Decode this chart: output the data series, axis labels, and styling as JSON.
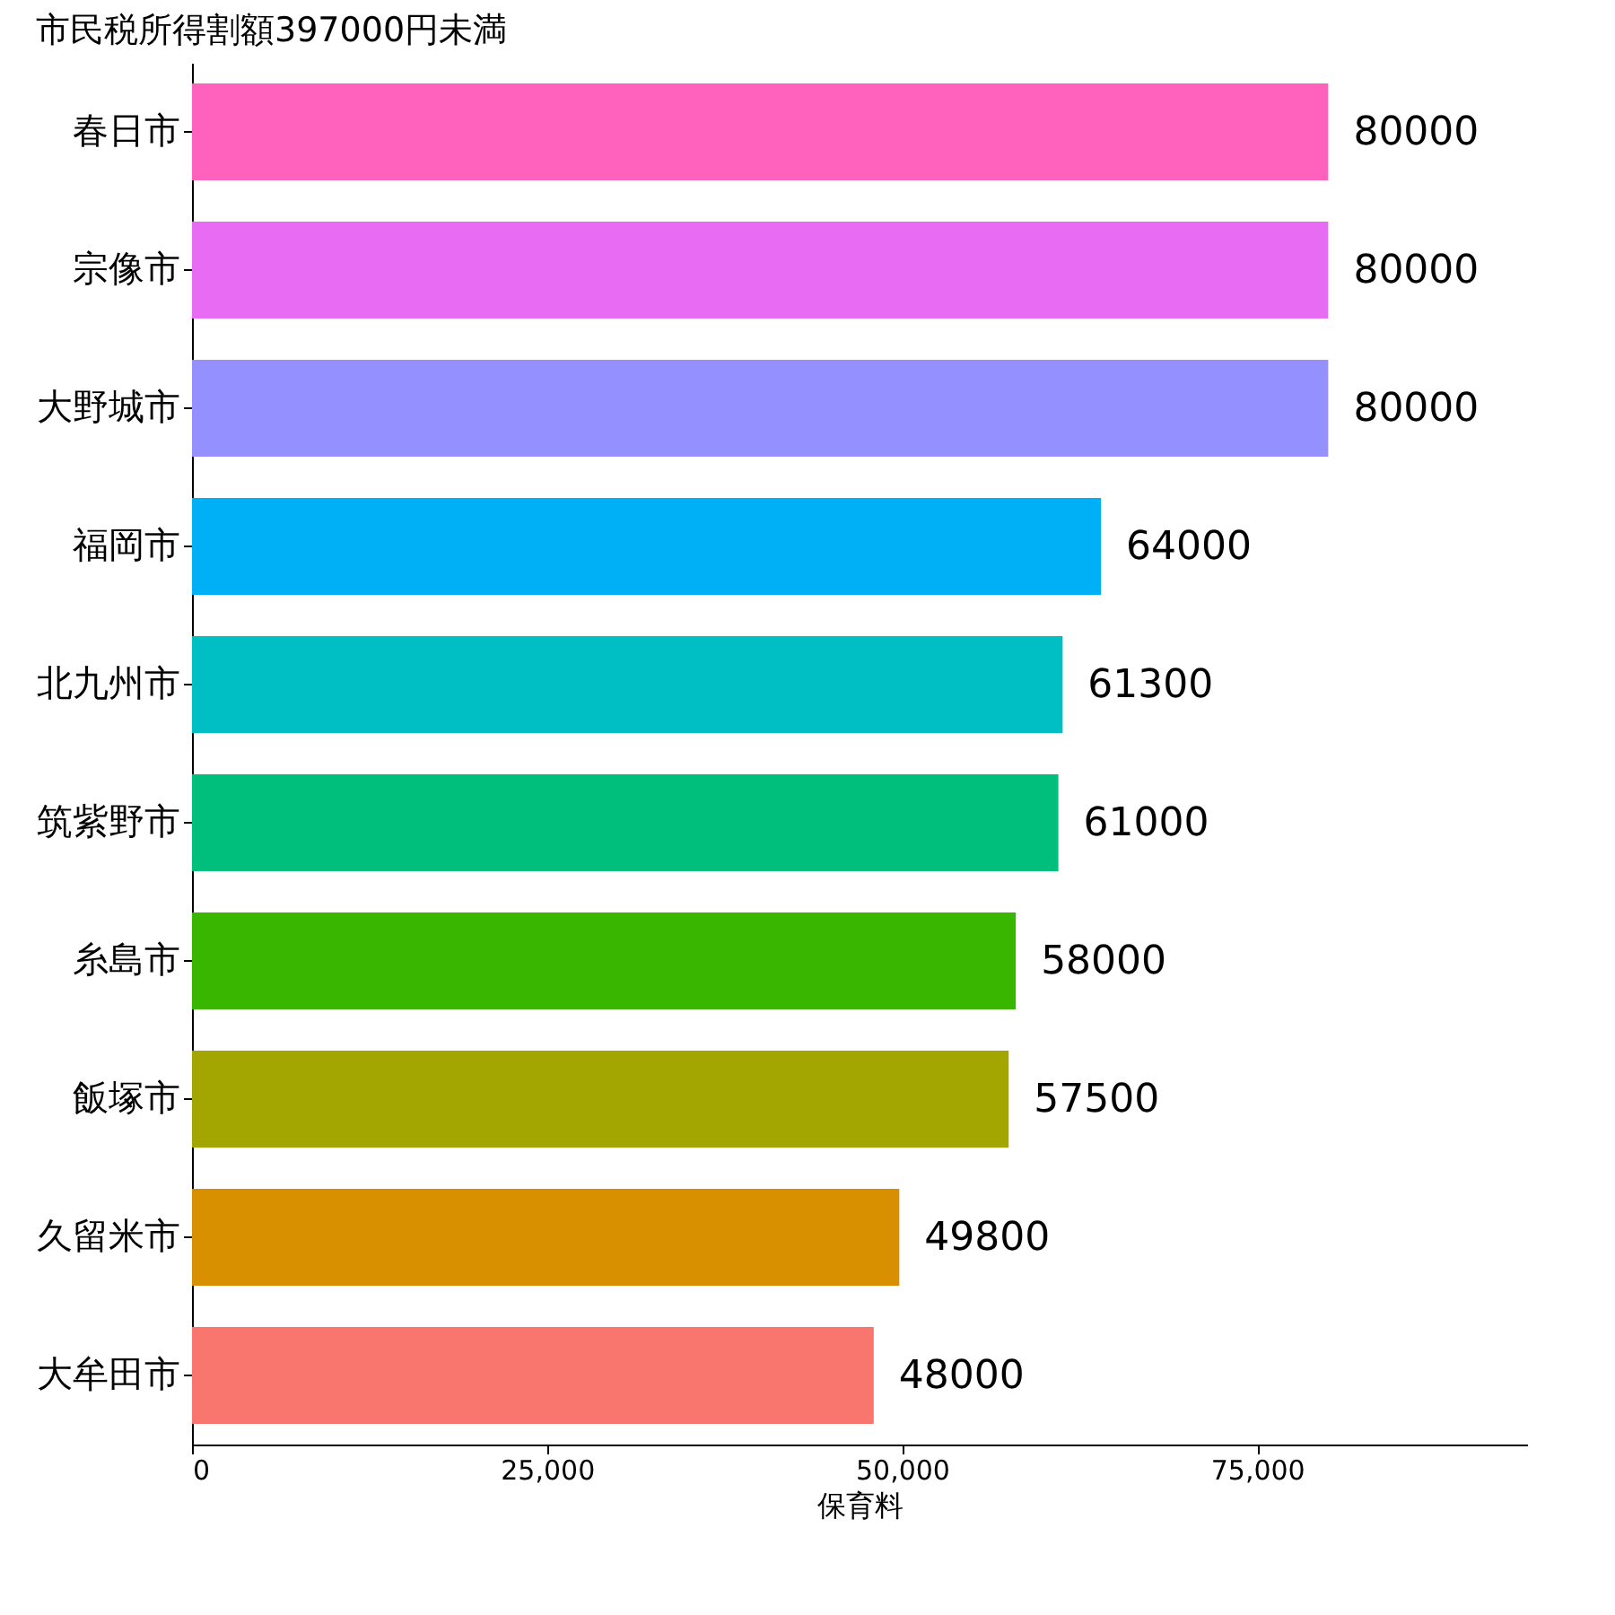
{
  "chart_data": {
    "type": "bar",
    "orientation": "horizontal",
    "title": "市民税所得割額397000円未満",
    "xlabel": "保育料",
    "categories": [
      "春日市",
      "宗像市",
      "大野城市",
      "福岡市",
      "北九州市",
      "筑紫野市",
      "糸島市",
      "飯塚市",
      "久留米市",
      "大牟田市"
    ],
    "values": [
      80000,
      80000,
      80000,
      64000,
      61300,
      61000,
      58000,
      57500,
      49800,
      48000
    ],
    "colors": [
      "#ff62bc",
      "#e76bf3",
      "#9590ff",
      "#00b0f6",
      "#00bfc4",
      "#00bf7d",
      "#39b600",
      "#a3a500",
      "#d89000",
      "#f8766d"
    ],
    "xlim": [
      0,
      94000
    ],
    "xticks": [
      0,
      {
        "value": 25000,
        "label": "25,000"
      },
      {
        "value": 50000,
        "label": "50,000"
      },
      {
        "value": 75000,
        "label": "75,000"
      }
    ],
    "data_labels": true,
    "grid": false
  }
}
